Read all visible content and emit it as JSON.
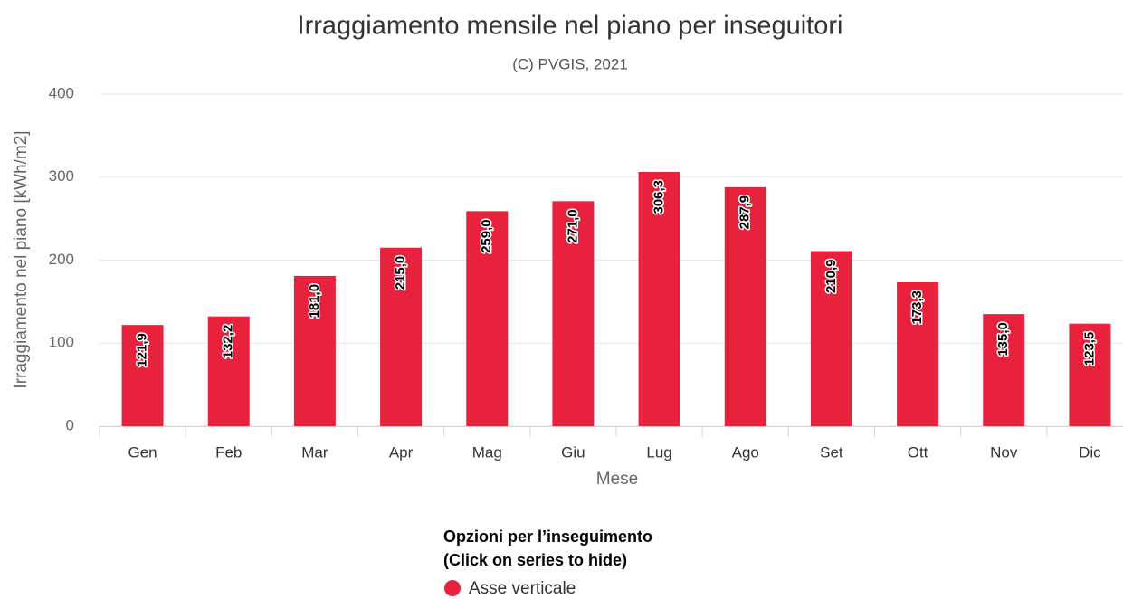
{
  "chart_data": {
    "type": "bar",
    "title": "Irraggiamento mensile nel piano per inseguitori",
    "subtitle": "(C) PVGIS, 2021",
    "x_label": "Mese",
    "y_label": "Irraggiamento nel piano [kWh/m2]",
    "categories": [
      "Gen",
      "Feb",
      "Mar",
      "Apr",
      "Mag",
      "Giu",
      "Lug",
      "Ago",
      "Set",
      "Ott",
      "Nov",
      "Dic"
    ],
    "series": [
      {
        "name": "Asse verticale",
        "color": "#e8223c",
        "values": [
          121.9,
          132.2,
          181.0,
          215.0,
          259.0,
          271.0,
          306.3,
          287.9,
          210.9,
          173.3,
          135.0,
          123.5
        ],
        "value_labels": [
          "121,9",
          "132,2",
          "181,0",
          "215,0",
          "259,0",
          "271,0",
          "306,3",
          "287,9",
          "210,9",
          "173,3",
          "135,0",
          "123,5"
        ]
      }
    ],
    "ylim": [
      0,
      400
    ],
    "yticks": [
      0,
      100,
      200,
      300,
      400
    ],
    "grid": true,
    "legend_title": [
      "Opzioni per l’inseguimento",
      "(Click on series to hide)"
    ]
  }
}
